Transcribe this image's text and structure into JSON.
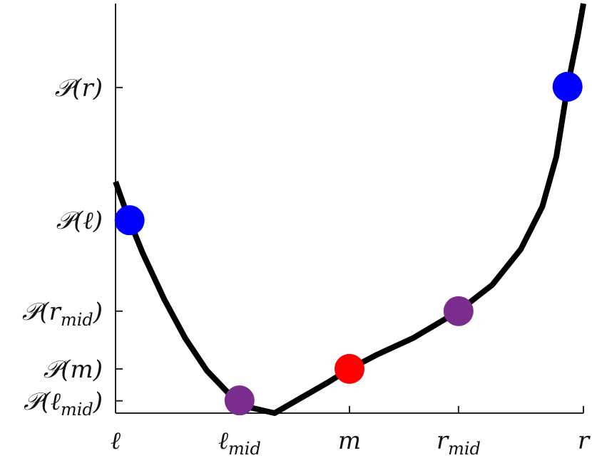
{
  "chart_data": {
    "type": "line",
    "xlim": [
      0,
      1
    ],
    "ylim": [
      0,
      1
    ],
    "xticks": [
      {
        "value": 0,
        "label": "ℓ"
      },
      {
        "value": 0.265,
        "label": "ℓ",
        "sub": "mid"
      },
      {
        "value": 0.5,
        "label": "m"
      },
      {
        "value": 0.733,
        "label": "r",
        "sub": "mid"
      },
      {
        "value": 1,
        "label": "r"
      }
    ],
    "yticks": [
      {
        "value": 0.03,
        "label": "𝒫(ℓ",
        "sub": "mid",
        "close": ")"
      },
      {
        "value": 0.108,
        "label": "𝒫(m)"
      },
      {
        "value": 0.249,
        "label": "𝒫(r",
        "sub": "mid",
        "close": ")"
      },
      {
        "value": 0.471,
        "label": "𝒫(ℓ)"
      },
      {
        "value": 0.795,
        "label": "𝒫(r)"
      }
    ],
    "curve": {
      "color": "#000000",
      "x": [
        0,
        0.027,
        0.058,
        0.104,
        0.149,
        0.195,
        0.241,
        0.287,
        0.34,
        0.393,
        0.454,
        0.5,
        0.561,
        0.637,
        0.733,
        0.805,
        0.866,
        0.912,
        0.942,
        0.966,
        0.988,
        1.0
      ],
      "y": [
        0.565,
        0.478,
        0.391,
        0.278,
        0.183,
        0.104,
        0.049,
        0.014,
        0,
        0.035,
        0.075,
        0.108,
        0.144,
        0.184,
        0.249,
        0.313,
        0.4,
        0.504,
        0.626,
        0.797,
        0.922,
        1.0
      ]
    },
    "points": {
      "x": [
        0.03,
        0.265,
        0.5,
        0.733,
        0.966
      ],
      "y": [
        0.471,
        0.031,
        0.108,
        0.249,
        0.797
      ],
      "colors": [
        "#0000ff",
        "#7b2d8e",
        "#ff0000",
        "#7b2d8e",
        "#0000ff"
      ]
    }
  }
}
